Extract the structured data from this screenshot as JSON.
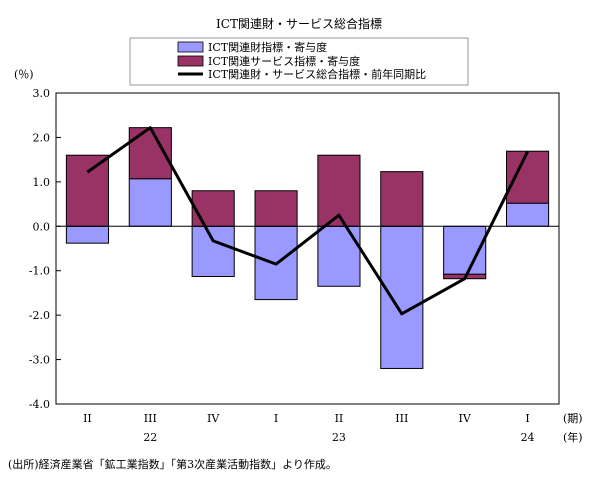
{
  "chart_data": {
    "type": "bar",
    "title": "ICT関連財・サービス総合指標",
    "y_unit_label": "(％)",
    "x_unit_quarter": "(期)",
    "x_unit_year": "(年)",
    "source_note": "(出所)経済産業省「鉱工業指数」「第3次産業活動指数」より作成。",
    "stacked": true,
    "legend_position": "top",
    "grid": false,
    "categories": [
      "II",
      "III",
      "IV",
      "I",
      "II",
      "III",
      "IV",
      "I"
    ],
    "year_labels": [
      {
        "label": "22",
        "category_index": 1
      },
      {
        "label": "23",
        "category_index": 4
      },
      {
        "label": "24",
        "category_index": 7
      }
    ],
    "ylim": [
      -4.0,
      3.0
    ],
    "yticks": [
      "3.0",
      "2.0",
      "1.0",
      "0.0",
      "-1.0",
      "-2.0",
      "-3.0",
      "-4.0"
    ],
    "series": [
      {
        "name": "ICT関連財指標・寄与度",
        "kind": "bar",
        "color": "#9999ff",
        "values": [
          -0.38,
          1.07,
          -1.13,
          -1.65,
          -1.35,
          -3.2,
          -1.08,
          0.52
        ]
      },
      {
        "name": "ICT関連サービス指標・寄与度",
        "kind": "bar",
        "color": "#993366",
        "values": [
          1.6,
          1.15,
          0.8,
          0.8,
          1.6,
          1.23,
          -0.1,
          1.17
        ]
      },
      {
        "name": "ICT関連財・サービス総合指標・前年同期比",
        "kind": "line",
        "color": "#000000",
        "values": [
          1.22,
          2.22,
          -0.33,
          -0.85,
          0.25,
          -1.97,
          -1.18,
          1.68
        ]
      }
    ]
  }
}
